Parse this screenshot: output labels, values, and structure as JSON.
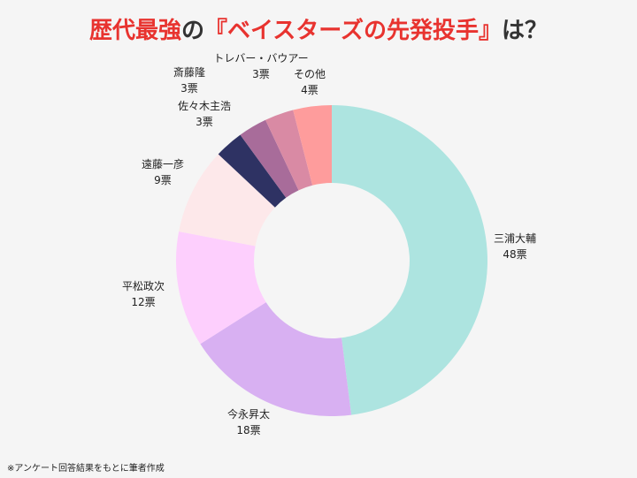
{
  "title": {
    "part1": "歴代最強",
    "part2": "の",
    "part3": "『ベイスターズの先発投手』",
    "part4": "は？"
  },
  "footnote": "※アンケート回答結果をもとに筆者作成",
  "chart_data": {
    "type": "pie",
    "donut": true,
    "unit": "票",
    "slices": [
      {
        "label": "三浦大輔",
        "value": 48,
        "value_label": "48票",
        "color": "#ade4e0"
      },
      {
        "label": "今永昇太",
        "value": 18,
        "value_label": "18票",
        "color": "#d8b0f2"
      },
      {
        "label": "平松政次",
        "value": 12,
        "value_label": "12票",
        "color": "#fdcffd"
      },
      {
        "label": "遠藤一彦",
        "value": 9,
        "value_label": "9票",
        "color": "#fde8ea"
      },
      {
        "label": "佐々木主浩",
        "value": 3,
        "value_label": "3票",
        "color": "#2e3263"
      },
      {
        "label": "斎藤隆",
        "value": 3,
        "value_label": "3票",
        "color": "#a86c9a"
      },
      {
        "label": "トレバー・バウアー",
        "value": 3,
        "value_label": "3票",
        "color": "#d98aa4"
      },
      {
        "label": "その他",
        "value": 4,
        "value_label": "4票",
        "color": "#fe9c9c"
      }
    ]
  }
}
